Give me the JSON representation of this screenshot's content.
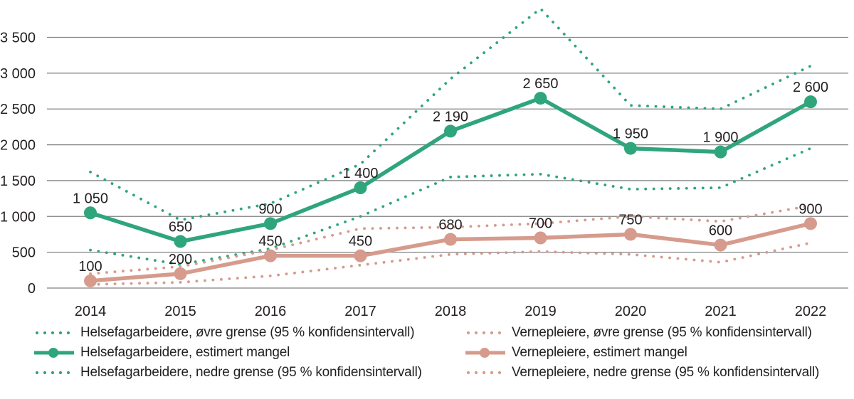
{
  "chart_data": {
    "type": "line",
    "title": "",
    "xlabel": "",
    "ylabel": "",
    "categories": [
      "2014",
      "2015",
      "2016",
      "2017",
      "2018",
      "2019",
      "2020",
      "2021",
      "2022"
    ],
    "ylim": [
      0,
      3500
    ],
    "grid": true,
    "legend_position": "bottom-two-columns",
    "yticks": [
      {
        "value": 0,
        "label": "0"
      },
      {
        "value": 500,
        "label": "500"
      },
      {
        "value": 1000,
        "label": "1 000"
      },
      {
        "value": 1500,
        "label": "1 500"
      },
      {
        "value": 2000,
        "label": "2 000"
      },
      {
        "value": 2500,
        "label": "2 500"
      },
      {
        "value": 3000,
        "label": "3 000"
      },
      {
        "value": 3500,
        "label": "3 500"
      }
    ],
    "series": [
      {
        "name": "Helsefagarbeidere, øvre grense (95 % konfidensintervall)",
        "style": "dotted",
        "color": "#2FA57C",
        "values": [
          1620,
          950,
          1180,
          1730,
          2920,
          3900,
          2550,
          2500,
          3100
        ]
      },
      {
        "name": "Helsefagarbeidere, estimert mangel",
        "style": "solid-marker",
        "color": "#2FA57C",
        "values": [
          1050,
          650,
          900,
          1400,
          2190,
          2650,
          1950,
          1900,
          2600
        ],
        "labels": [
          "1 050",
          "650",
          "900",
          "1 400",
          "2 190",
          "2 650",
          "1 950",
          "1 900",
          "2 600"
        ]
      },
      {
        "name": "Helsefagarbeidere, nedre grense (95 % konfidensintervall)",
        "style": "dotted",
        "color": "#2FA57C",
        "values": [
          530,
          330,
          550,
          1000,
          1550,
          1590,
          1380,
          1400,
          1950
        ]
      },
      {
        "name": "Vernepleiere, øvre grense (95 % konfidensintervall)",
        "style": "dotted",
        "color": "#D69B8C",
        "values": [
          200,
          300,
          530,
          830,
          850,
          900,
          1000,
          930,
          1150
        ]
      },
      {
        "name": "Vernepleiere, estimert mangel",
        "style": "solid-marker",
        "color": "#D69B8C",
        "values": [
          100,
          200,
          450,
          450,
          680,
          700,
          750,
          600,
          900
        ],
        "labels": [
          "100",
          "200",
          "450",
          "450",
          "680",
          "700",
          "750",
          "600",
          "900"
        ]
      },
      {
        "name": "Vernepleiere, nedre grense (95 % konfidensintervall)",
        "style": "dotted",
        "color": "#D69B8C",
        "values": [
          50,
          80,
          170,
          320,
          470,
          510,
          470,
          360,
          630
        ]
      }
    ]
  },
  "legend": {
    "items": [
      {
        "label": "Helsefagarbeidere, øvre grense (95 % konfidensintervall)"
      },
      {
        "label": "Helsefagarbeidere, estimert mangel"
      },
      {
        "label": "Helsefagarbeidere, nedre grense (95 % konfidensintervall)"
      },
      {
        "label": "Vernepleiere, øvre grense (95 % konfidensintervall)"
      },
      {
        "label": "Vernepleiere, estimert mangel"
      },
      {
        "label": "Vernepleiere, nedre grense (95 % konfidensintervall)"
      }
    ]
  },
  "colors": {
    "green": "#2FA57C",
    "pink": "#D69B8C",
    "grid": "#808285",
    "text": "#231F20",
    "background": "#FFFFFF"
  }
}
